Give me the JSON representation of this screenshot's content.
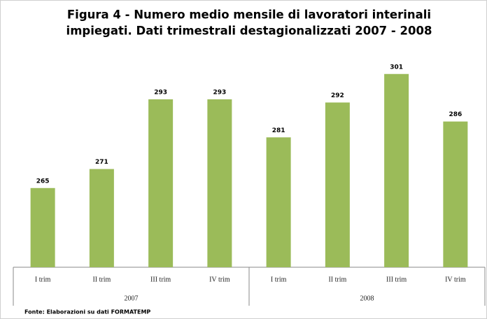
{
  "chart_data": {
    "type": "bar",
    "title": [
      "Figura 4 - Numero medio mensile di lavoratori interinali",
      "impiegati. Dati trimestrali destagionalizzati 2007 - 2008"
    ],
    "categories": [
      "I trim",
      "II trim",
      "III trim",
      "IV trim",
      "I trim",
      "II trim",
      "III trim",
      "IV trim"
    ],
    "groups": [
      "2007",
      "2008"
    ],
    "values": [
      265,
      271,
      293,
      293,
      281,
      292,
      301,
      286
    ],
    "color": "#9bbb59",
    "ylim": [
      240,
      310
    ],
    "source": "Fonte: Elaborazioni su dati FORMATEMP"
  }
}
